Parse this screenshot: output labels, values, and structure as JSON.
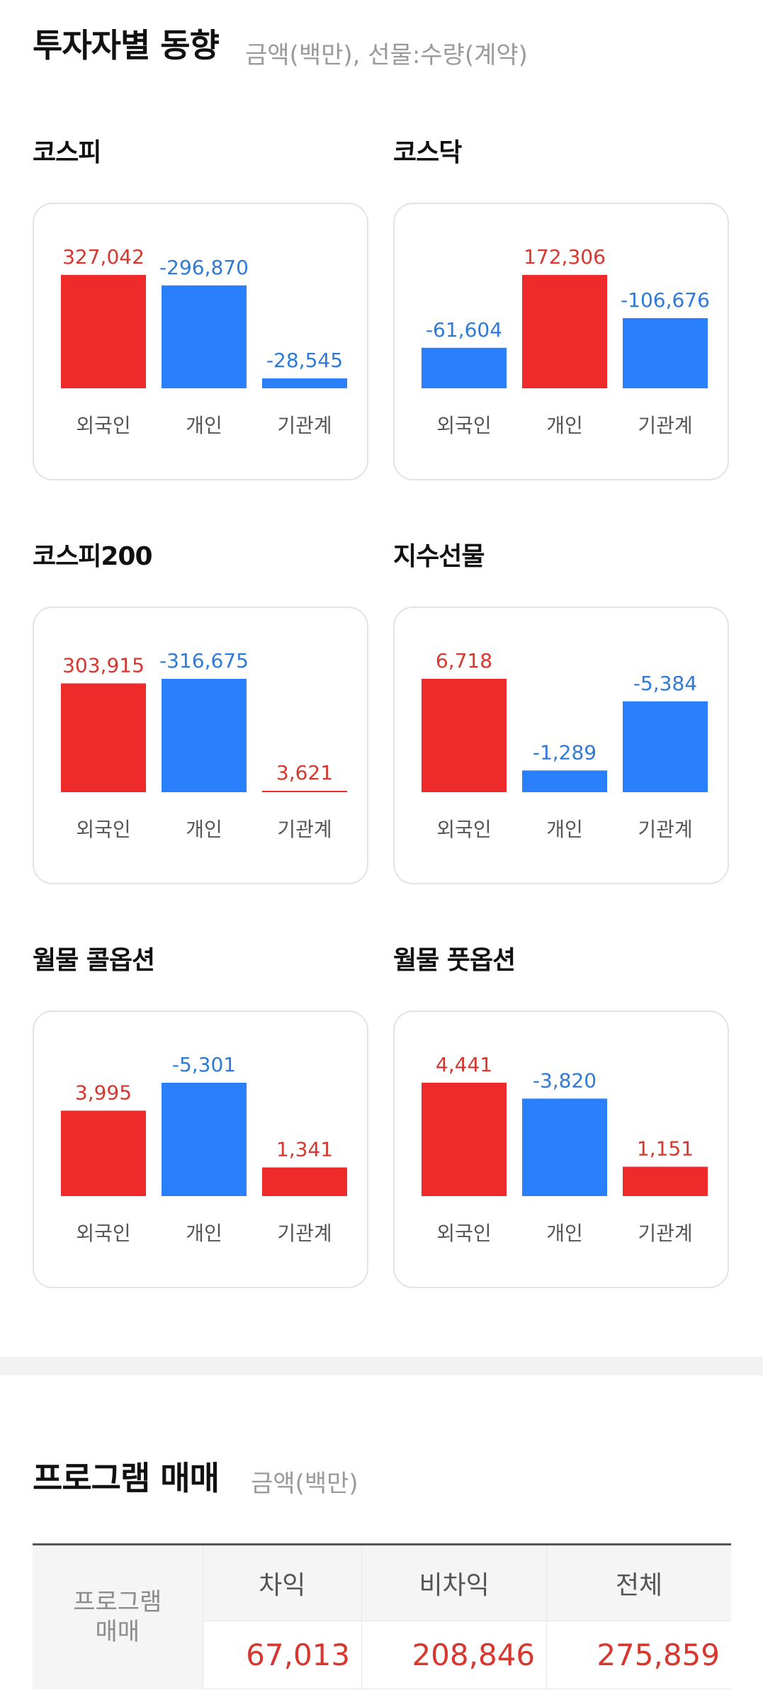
{
  "colors": {
    "positive": "#ee2a2a",
    "negative": "#2a7ffc",
    "positive_text": "#d6372e",
    "negative_text": "#2f7ad8"
  },
  "investor": {
    "title": "투자자별 동향",
    "subtitle": "금액(백만), 선물:수량(계약)"
  },
  "chart_data": [
    {
      "type": "bar",
      "title": "코스피",
      "categories": [
        "외국인",
        "개인",
        "기관계"
      ],
      "values": [
        327042,
        -296870,
        -28545
      ]
    },
    {
      "type": "bar",
      "title": "코스닥",
      "categories": [
        "외국인",
        "개인",
        "기관계"
      ],
      "values": [
        -61604,
        172306,
        -106676
      ]
    },
    {
      "type": "bar",
      "title": "코스피200",
      "categories": [
        "외국인",
        "개인",
        "기관계"
      ],
      "values": [
        303915,
        -316675,
        3621
      ]
    },
    {
      "type": "bar",
      "title": "지수선물",
      "categories": [
        "외국인",
        "개인",
        "기관계"
      ],
      "values": [
        6718,
        -1289,
        -5384
      ]
    },
    {
      "type": "bar",
      "title": "월물 콜옵션",
      "categories": [
        "외국인",
        "개인",
        "기관계"
      ],
      "values": [
        3995,
        -5301,
        1341
      ]
    },
    {
      "type": "bar",
      "title": "월물 풋옵션",
      "categories": [
        "외국인",
        "개인",
        "기관계"
      ],
      "values": [
        4441,
        -3820,
        1151
      ]
    }
  ],
  "program": {
    "title": "프로그램 매매",
    "subtitle": "금액(백만)",
    "row_header": "프로그램\n매매",
    "columns": [
      "차익",
      "비차익",
      "전체"
    ],
    "values": [
      "67,013",
      "208,846",
      "275,859"
    ]
  }
}
